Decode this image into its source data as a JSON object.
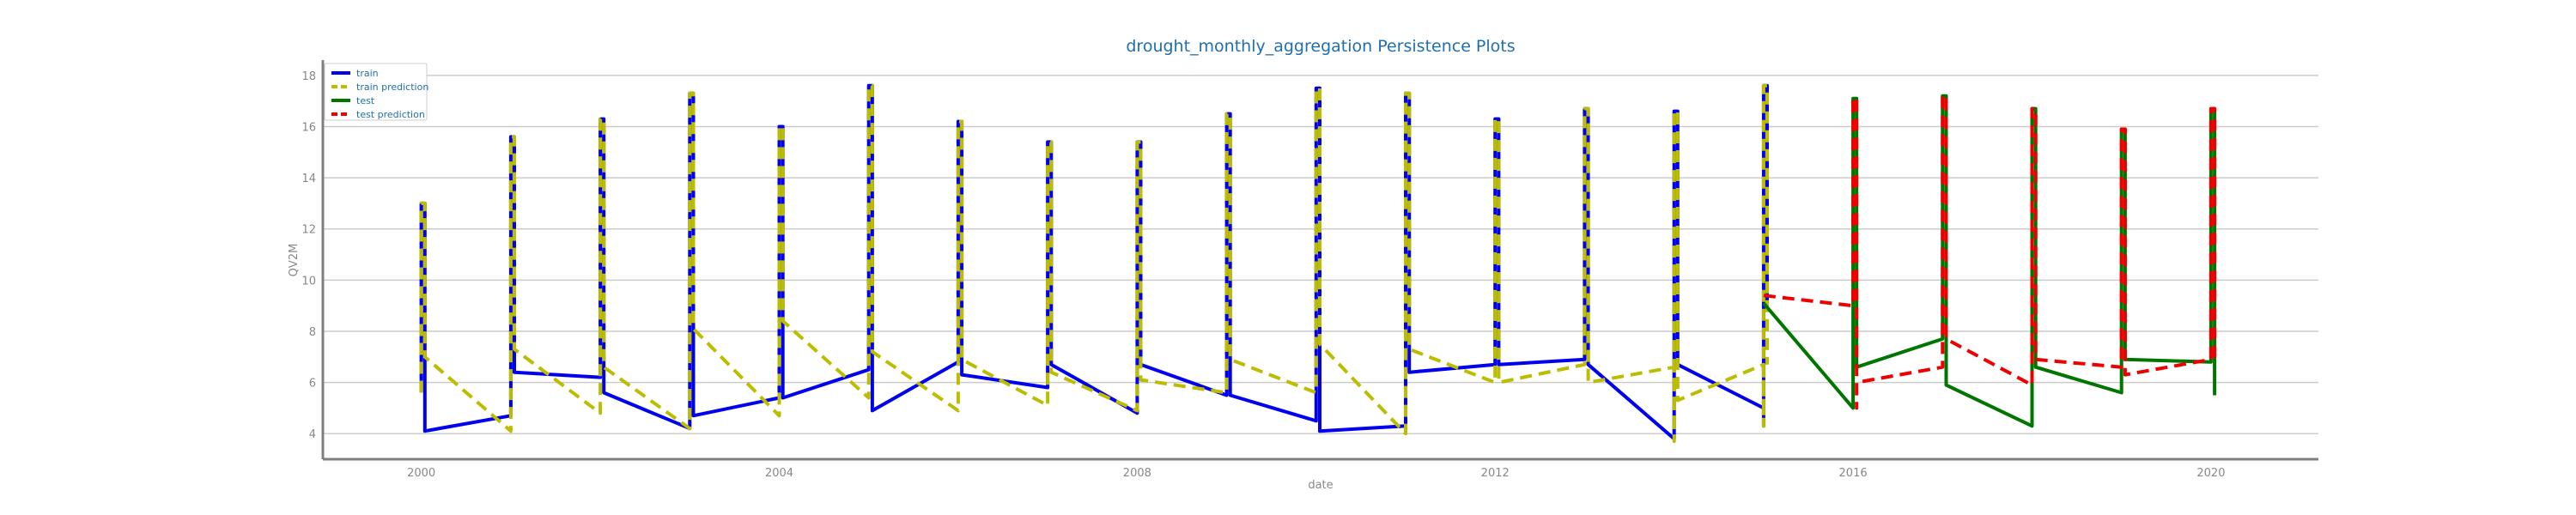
{
  "chart_data": {
    "type": "line",
    "title": "drought_monthly_aggregation Persistence Plots",
    "xlabel": "date",
    "ylabel": "QV2M",
    "xlim": [
      1998.9,
      2021.2
    ],
    "ylim": [
      3.0,
      18.6
    ],
    "x_ticks": [
      2000,
      2004,
      2008,
      2012,
      2016,
      2020
    ],
    "x_tick_labels": [
      "2000",
      "2004",
      "2008",
      "2012",
      "2016",
      "2020"
    ],
    "y_ticks": [
      4,
      6,
      8,
      10,
      12,
      14,
      16,
      18
    ],
    "y_tick_labels": [
      "4",
      "6",
      "8",
      "10",
      "12",
      "14",
      "16",
      "18"
    ],
    "grid": "horizontal",
    "legend_position": "top-left",
    "series": [
      {
        "name": "train",
        "color": "#0000ee",
        "style": "solid",
        "points": [
          [
            2000.0,
            5.6
          ],
          [
            2000.0,
            13.0
          ],
          [
            2000.04,
            13.0
          ],
          [
            2000.04,
            4.1
          ],
          [
            2001.0,
            4.7
          ],
          [
            2001.0,
            15.6
          ],
          [
            2001.04,
            15.6
          ],
          [
            2001.04,
            6.4
          ],
          [
            2002.0,
            6.2
          ],
          [
            2002.0,
            16.3
          ],
          [
            2002.04,
            16.3
          ],
          [
            2002.04,
            5.6
          ],
          [
            2003.0,
            4.2
          ],
          [
            2003.0,
            17.3
          ],
          [
            2003.04,
            17.3
          ],
          [
            2003.04,
            4.7
          ],
          [
            2004.0,
            5.4
          ],
          [
            2004.0,
            16.0
          ],
          [
            2004.04,
            16.0
          ],
          [
            2004.04,
            5.4
          ],
          [
            2005.0,
            6.5
          ],
          [
            2005.0,
            17.6
          ],
          [
            2005.04,
            17.6
          ],
          [
            2005.04,
            4.9
          ],
          [
            2006.0,
            6.8
          ],
          [
            2006.0,
            16.2
          ],
          [
            2006.04,
            16.2
          ],
          [
            2006.04,
            6.3
          ],
          [
            2007.0,
            5.8
          ],
          [
            2007.0,
            15.4
          ],
          [
            2007.04,
            15.4
          ],
          [
            2007.04,
            6.7
          ],
          [
            2008.0,
            4.8
          ],
          [
            2008.0,
            15.4
          ],
          [
            2008.04,
            15.4
          ],
          [
            2008.04,
            6.7
          ],
          [
            2009.0,
            5.5
          ],
          [
            2009.0,
            16.5
          ],
          [
            2009.04,
            16.5
          ],
          [
            2009.04,
            5.5
          ],
          [
            2010.0,
            4.5
          ],
          [
            2010.0,
            17.5
          ],
          [
            2010.04,
            17.5
          ],
          [
            2010.04,
            4.1
          ],
          [
            2011.0,
            4.3
          ],
          [
            2011.0,
            17.3
          ],
          [
            2011.04,
            17.3
          ],
          [
            2011.04,
            6.4
          ],
          [
            2012.0,
            6.7
          ],
          [
            2012.0,
            16.3
          ],
          [
            2012.04,
            16.3
          ],
          [
            2012.04,
            6.7
          ],
          [
            2013.0,
            6.9
          ],
          [
            2013.0,
            16.7
          ],
          [
            2013.04,
            16.7
          ],
          [
            2013.04,
            6.7
          ],
          [
            2014.0,
            3.8
          ],
          [
            2014.0,
            16.6
          ],
          [
            2014.04,
            16.6
          ],
          [
            2014.04,
            6.7
          ],
          [
            2015.0,
            5.0
          ],
          [
            2015.0,
            4.3
          ],
          [
            2015.0,
            17.6
          ],
          [
            2015.04,
            17.6
          ],
          [
            2015.04,
            9.2
          ]
        ]
      },
      {
        "name": "train prediction",
        "color": "#bcbd00",
        "style": "dashed",
        "points": [
          [
            2000.0,
            5.6
          ],
          [
            2000.0,
            13.0
          ],
          [
            2000.04,
            13.0
          ],
          [
            2000.04,
            7.0
          ],
          [
            2001.0,
            4.1
          ],
          [
            2001.0,
            15.6
          ],
          [
            2001.04,
            15.6
          ],
          [
            2001.04,
            7.3
          ],
          [
            2002.0,
            4.8
          ],
          [
            2002.0,
            16.3
          ],
          [
            2002.04,
            16.3
          ],
          [
            2002.04,
            6.6
          ],
          [
            2003.0,
            4.2
          ],
          [
            2003.0,
            17.3
          ],
          [
            2003.04,
            17.3
          ],
          [
            2003.04,
            8.1
          ],
          [
            2004.0,
            4.7
          ],
          [
            2004.0,
            16.0
          ],
          [
            2004.04,
            16.0
          ],
          [
            2004.04,
            8.4
          ],
          [
            2005.0,
            5.4
          ],
          [
            2005.0,
            17.6
          ],
          [
            2005.04,
            17.6
          ],
          [
            2005.04,
            7.2
          ],
          [
            2006.0,
            4.9
          ],
          [
            2006.0,
            16.2
          ],
          [
            2006.04,
            16.2
          ],
          [
            2006.04,
            6.9
          ],
          [
            2007.0,
            5.1
          ],
          [
            2007.0,
            15.4
          ],
          [
            2007.04,
            15.4
          ],
          [
            2007.04,
            6.4
          ],
          [
            2008.0,
            4.9
          ],
          [
            2008.0,
            15.4
          ],
          [
            2008.04,
            15.4
          ],
          [
            2008.04,
            6.1
          ],
          [
            2009.0,
            5.6
          ],
          [
            2009.0,
            16.5
          ],
          [
            2009.04,
            16.5
          ],
          [
            2009.04,
            6.9
          ],
          [
            2010.0,
            5.6
          ],
          [
            2010.0,
            17.5
          ],
          [
            2010.04,
            17.5
          ],
          [
            2010.04,
            7.5
          ],
          [
            2011.0,
            4.0
          ],
          [
            2011.0,
            17.3
          ],
          [
            2011.04,
            17.3
          ],
          [
            2011.04,
            7.3
          ],
          [
            2012.0,
            6.0
          ],
          [
            2012.0,
            16.3
          ],
          [
            2012.04,
            16.3
          ],
          [
            2012.04,
            6.0
          ],
          [
            2013.0,
            6.7
          ],
          [
            2013.0,
            16.7
          ],
          [
            2013.04,
            16.7
          ],
          [
            2013.04,
            6.0
          ],
          [
            2014.0,
            6.6
          ],
          [
            2014.0,
            3.7
          ],
          [
            2014.0,
            16.6
          ],
          [
            2014.04,
            16.6
          ],
          [
            2014.04,
            5.3
          ],
          [
            2015.0,
            6.7
          ],
          [
            2015.0,
            4.3
          ],
          [
            2015.0,
            17.6
          ],
          [
            2015.04,
            17.6
          ],
          [
            2015.04,
            6.7
          ]
        ]
      },
      {
        "name": "test",
        "color": "#007500",
        "style": "solid",
        "points": [
          [
            2015.0,
            9.1
          ],
          [
            2016.0,
            5.0
          ],
          [
            2016.0,
            17.1
          ],
          [
            2016.04,
            17.1
          ],
          [
            2016.04,
            6.6
          ],
          [
            2017.0,
            7.7
          ],
          [
            2017.0,
            17.2
          ],
          [
            2017.04,
            17.2
          ],
          [
            2017.04,
            5.9
          ],
          [
            2018.0,
            4.3
          ],
          [
            2018.0,
            16.7
          ],
          [
            2018.04,
            16.7
          ],
          [
            2018.04,
            6.6
          ],
          [
            2019.0,
            5.6
          ],
          [
            2019.0,
            15.9
          ],
          [
            2019.04,
            15.9
          ],
          [
            2019.04,
            6.9
          ],
          [
            2020.0,
            6.8
          ],
          [
            2020.0,
            16.7
          ],
          [
            2020.04,
            16.7
          ],
          [
            2020.04,
            5.5
          ]
        ]
      },
      {
        "name": "test prediction",
        "color": "#ee0000",
        "style": "dashed",
        "points": [
          [
            2015.0,
            9.4
          ],
          [
            2016.0,
            9.0
          ],
          [
            2016.0,
            17.1
          ],
          [
            2016.04,
            17.1
          ],
          [
            2016.04,
            5.0
          ],
          [
            2016.04,
            6.0
          ],
          [
            2017.0,
            6.6
          ],
          [
            2017.0,
            17.2
          ],
          [
            2017.04,
            17.2
          ],
          [
            2017.04,
            7.7
          ],
          [
            2018.0,
            5.9
          ],
          [
            2018.0,
            16.7
          ],
          [
            2018.04,
            16.7
          ],
          [
            2018.04,
            6.9
          ],
          [
            2019.0,
            6.6
          ],
          [
            2019.0,
            15.9
          ],
          [
            2019.04,
            15.9
          ],
          [
            2019.04,
            6.3
          ],
          [
            2020.0,
            6.9
          ],
          [
            2020.0,
            16.7
          ],
          [
            2020.04,
            16.7
          ],
          [
            2020.04,
            6.9
          ]
        ]
      }
    ]
  }
}
